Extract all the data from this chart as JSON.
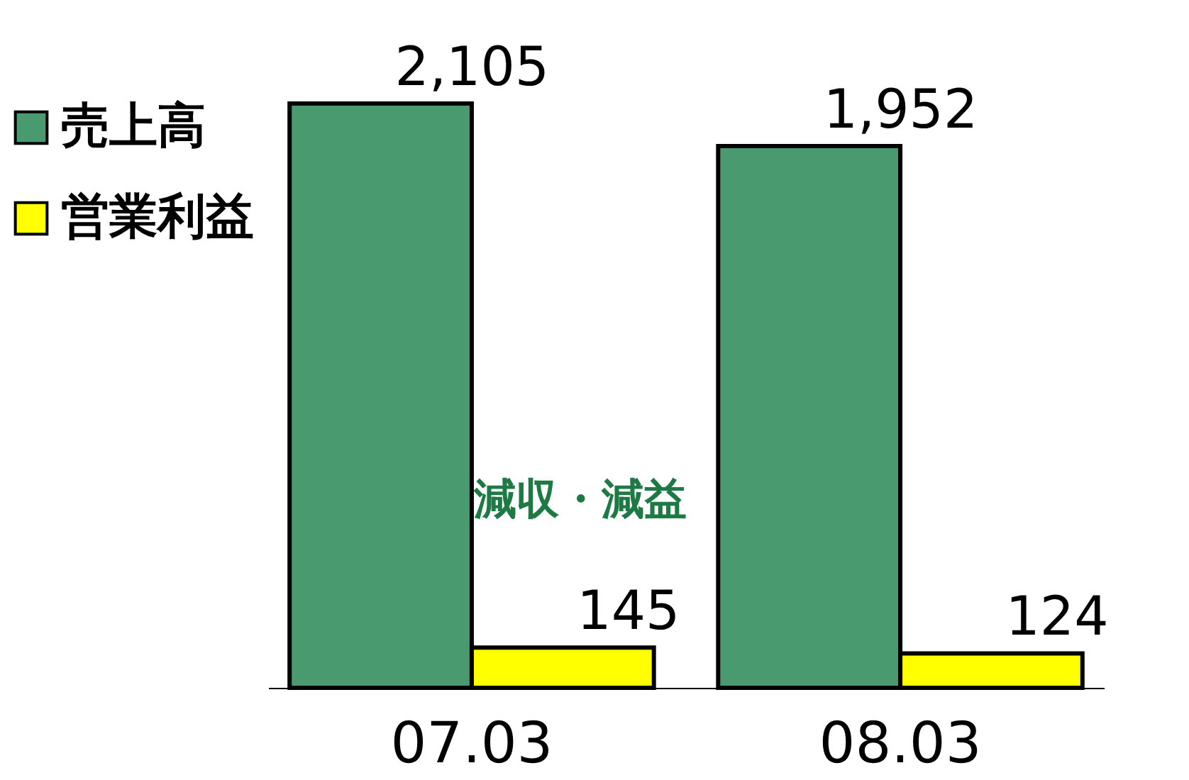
{
  "chart_data": {
    "type": "bar",
    "categories": [
      "07.03",
      "08.03"
    ],
    "series": [
      {
        "name": "売上高",
        "color": "#4a9a70",
        "values": [
          2105,
          1952
        ],
        "value_labels": [
          "2,105",
          "1,952"
        ]
      },
      {
        "name": "営業利益",
        "color": "#ffff00",
        "values": [
          145,
          124
        ],
        "value_labels": [
          "145",
          "124"
        ]
      }
    ],
    "annotations": [
      "減収・減益"
    ],
    "legend": "top left",
    "grid": false
  }
}
